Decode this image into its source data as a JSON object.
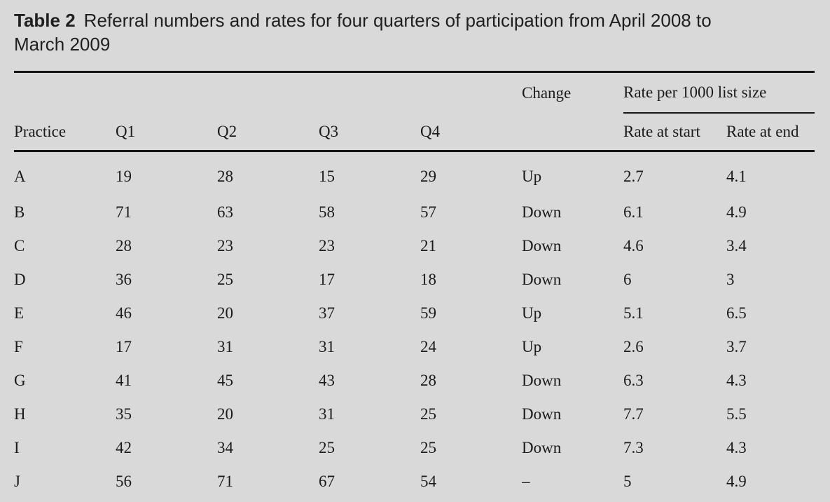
{
  "title": {
    "label": "Table 2",
    "line1": "Referral numbers and rates for four quarters of participation from April 2008 to",
    "line2": "March 2009"
  },
  "table": {
    "header": {
      "practice": "Practice",
      "q1": "Q1",
      "q2": "Q2",
      "q3": "Q3",
      "q4": "Q4",
      "change": "Change",
      "rate_group": "Rate per 1000 list size",
      "rate_start": "Rate at start",
      "rate_end": "Rate at end"
    },
    "rows": [
      {
        "practice": "A",
        "q1": "19",
        "q2": "28",
        "q3": "15",
        "q4": "29",
        "change": "Up",
        "rate_start": "2.7",
        "rate_end": "4.1"
      },
      {
        "practice": "B",
        "q1": "71",
        "q2": "63",
        "q3": "58",
        "q4": "57",
        "change": "Down",
        "rate_start": "6.1",
        "rate_end": "4.9"
      },
      {
        "practice": "C",
        "q1": "28",
        "q2": "23",
        "q3": "23",
        "q4": "21",
        "change": "Down",
        "rate_start": "4.6",
        "rate_end": "3.4"
      },
      {
        "practice": "D",
        "q1": "36",
        "q2": "25",
        "q3": "17",
        "q4": "18",
        "change": "Down",
        "rate_start": "6",
        "rate_end": "3"
      },
      {
        "practice": "E",
        "q1": "46",
        "q2": "20",
        "q3": "37",
        "q4": "59",
        "change": "Up",
        "rate_start": "5.1",
        "rate_end": "6.5"
      },
      {
        "practice": "F",
        "q1": "17",
        "q2": "31",
        "q3": "31",
        "q4": "24",
        "change": "Up",
        "rate_start": "2.6",
        "rate_end": "3.7"
      },
      {
        "practice": "G",
        "q1": "41",
        "q2": "45",
        "q3": "43",
        "q4": "28",
        "change": "Down",
        "rate_start": "6.3",
        "rate_end": "4.3"
      },
      {
        "practice": "H",
        "q1": "35",
        "q2": "20",
        "q3": "31",
        "q4": "25",
        "change": "Down",
        "rate_start": "7.7",
        "rate_end": "5.5"
      },
      {
        "practice": "I",
        "q1": "42",
        "q2": "34",
        "q3": "25",
        "q4": "25",
        "change": "Down",
        "rate_start": "7.3",
        "rate_end": "4.3"
      },
      {
        "practice": "J",
        "q1": "56",
        "q2": "71",
        "q3": "67",
        "q4": "54",
        "change": "–",
        "rate_start": "5",
        "rate_end": "4.9"
      }
    ]
  },
  "chart_data": {
    "type": "table",
    "title": "Table 2 Referral numbers and rates for four quarters of participation from April 2008 to March 2009",
    "columns": [
      "Practice",
      "Q1",
      "Q2",
      "Q3",
      "Q4",
      "Change",
      "Rate at start",
      "Rate at end"
    ],
    "column_groups": [
      {
        "label": "Rate per 1000 list size",
        "spans": [
          "Rate at start",
          "Rate at end"
        ]
      }
    ],
    "rows": [
      [
        "A",
        19,
        28,
        15,
        29,
        "Up",
        2.7,
        4.1
      ],
      [
        "B",
        71,
        63,
        58,
        57,
        "Down",
        6.1,
        4.9
      ],
      [
        "C",
        28,
        23,
        23,
        21,
        "Down",
        4.6,
        3.4
      ],
      [
        "D",
        36,
        25,
        17,
        18,
        "Down",
        6,
        3
      ],
      [
        "E",
        46,
        20,
        37,
        59,
        "Up",
        5.1,
        6.5
      ],
      [
        "F",
        17,
        31,
        31,
        24,
        "Up",
        2.6,
        3.7
      ],
      [
        "G",
        41,
        45,
        43,
        28,
        "Down",
        6.3,
        4.3
      ],
      [
        "H",
        35,
        20,
        31,
        25,
        "Down",
        7.7,
        5.5
      ],
      [
        "I",
        42,
        34,
        25,
        25,
        "Down",
        7.3,
        4.3
      ],
      [
        "J",
        56,
        71,
        67,
        54,
        "–",
        5,
        4.9
      ]
    ]
  },
  "colors": {
    "background": "#d9d9d9",
    "text": "#1b1b1b",
    "rule": "#151515"
  }
}
